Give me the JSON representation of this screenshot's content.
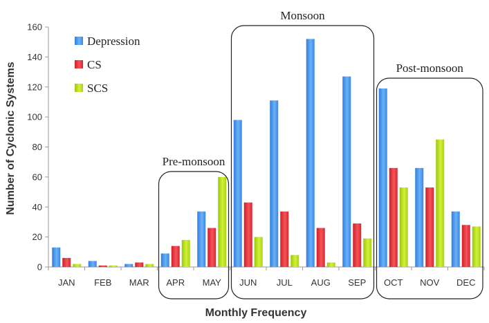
{
  "chart_data": {
    "type": "bar",
    "xlabel": "Monthly Frequency",
    "ylabel": "Number of Cyclonic Systems",
    "ylim": [
      0,
      160
    ],
    "yticks": [
      0,
      20,
      40,
      60,
      80,
      100,
      120,
      140,
      160
    ],
    "categories": [
      "JAN",
      "FEB",
      "MAR",
      "APR",
      "MAY",
      "JUN",
      "JUL",
      "AUG",
      "SEP",
      "OCT",
      "NOV",
      "DEC"
    ],
    "series": [
      {
        "name": "Depression",
        "color": "#5a9fef",
        "values": [
          13,
          4,
          2,
          9,
          37,
          98,
          111,
          152,
          127,
          119,
          66,
          37
        ]
      },
      {
        "name": "CS",
        "color": "#e8353a",
        "values": [
          6,
          1,
          3,
          14,
          26,
          43,
          37,
          26,
          29,
          66,
          53,
          28
        ]
      },
      {
        "name": "SCS",
        "color": "#b8e01a",
        "values": [
          2,
          1,
          2,
          18,
          60,
          20,
          8,
          3,
          19,
          53,
          85,
          27
        ]
      }
    ],
    "legend": "top-left",
    "grid": false,
    "annotations": [
      {
        "label": "Pre-monsoon",
        "from": "APR",
        "to": "MAY"
      },
      {
        "label": "Monsoon",
        "from": "JUN",
        "to": "SEP"
      },
      {
        "label": "Post-monsoon",
        "from": "OCT",
        "to": "DEC"
      }
    ]
  }
}
